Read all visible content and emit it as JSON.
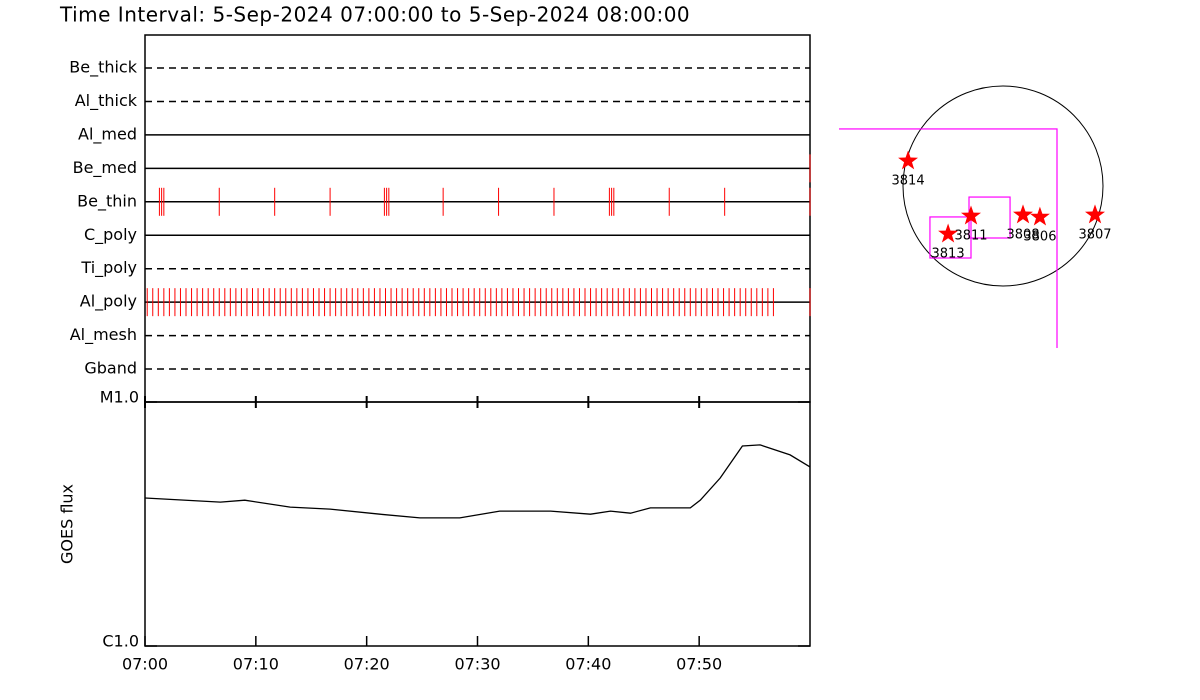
{
  "chart_data": [
    {
      "type": "timeline",
      "title": "Time Interval:  5-Sep-2024 07:00:00 to  5-Sep-2024 08:00:00",
      "xlim": [
        0,
        60
      ],
      "event_color": "#ff0000",
      "rows": [
        {
          "name": "Be_thick",
          "line_style": "dashed",
          "times": []
        },
        {
          "name": "Al_thick",
          "line_style": "dashed",
          "times": []
        },
        {
          "name": "Al_med",
          "line_style": "solid",
          "times": []
        },
        {
          "name": "Be_med",
          "line_style": "solid",
          "times": [
            60
          ]
        },
        {
          "name": "Be_thin",
          "line_style": "solid",
          "times": [
            1.3,
            1.5,
            1.7,
            6.7,
            11.7,
            16.7,
            21.6,
            21.8,
            22.0,
            26.9,
            31.9,
            36.9,
            41.9,
            42.1,
            42.3,
            47.3,
            52.3,
            60
          ]
        },
        {
          "name": "C_poly",
          "line_style": "solid",
          "times": []
        },
        {
          "name": "Ti_poly",
          "line_style": "dashed",
          "times": []
        },
        {
          "name": "Al_poly",
          "line_style": "solid",
          "times": [
            0.2,
            0.7,
            1.2,
            1.7,
            2.2,
            2.7,
            3.2,
            3.7,
            4.2,
            4.7,
            5.2,
            5.7,
            6.2,
            6.7,
            7.2,
            7.7,
            8.2,
            8.7,
            9.2,
            9.7,
            10.2,
            10.7,
            11.2,
            11.7,
            12.2,
            12.7,
            13.2,
            13.7,
            14.2,
            14.7,
            15.2,
            15.7,
            16.2,
            16.7,
            17.2,
            17.7,
            18.2,
            18.7,
            19.2,
            19.7,
            20.2,
            20.7,
            21.2,
            21.7,
            22.2,
            22.7,
            23.2,
            23.7,
            24.2,
            24.7,
            25.2,
            25.7,
            26.2,
            26.7,
            27.2,
            27.7,
            28.2,
            28.7,
            29.2,
            29.7,
            30.2,
            30.7,
            31.2,
            31.7,
            32.2,
            32.7,
            33.2,
            33.7,
            34.2,
            34.7,
            35.2,
            35.7,
            36.2,
            36.7,
            37.2,
            37.7,
            38.2,
            38.7,
            39.2,
            39.7,
            40.2,
            40.7,
            41.2,
            41.7,
            42.2,
            42.7,
            43.2,
            43.7,
            44.2,
            44.7,
            45.2,
            45.7,
            46.2,
            46.7,
            47.2,
            47.7,
            48.2,
            48.7,
            49.2,
            49.7,
            50.2,
            50.7,
            51.2,
            51.7,
            52.2,
            52.7,
            53.2,
            53.7,
            54.2,
            54.7,
            55.2,
            55.7,
            56.2,
            56.7,
            60
          ]
        },
        {
          "name": "Al_mesh",
          "line_style": "dashed",
          "times": []
        },
        {
          "name": "Gband",
          "line_style": "dashed",
          "times": []
        }
      ]
    },
    {
      "type": "line",
      "ylabel": "GOES flux",
      "log_scale": true,
      "color": "#000000",
      "xlim": [
        0,
        60
      ],
      "xticks": [
        {
          "value": 0,
          "label": "07:00"
        },
        {
          "value": 10,
          "label": "07:10"
        },
        {
          "value": 20,
          "label": "07:20"
        },
        {
          "value": 30,
          "label": "07:30"
        },
        {
          "value": 40,
          "label": "07:40"
        },
        {
          "value": 50,
          "label": "07:50"
        }
      ],
      "ylim": [
        1e-06,
        1e-05
      ],
      "yticks": [
        {
          "value": 1e-05,
          "label": "M1.0"
        },
        {
          "value": 1e-06,
          "label": "C1.0"
        }
      ],
      "x": [
        0,
        6.8,
        9.0,
        13.1,
        16.7,
        21.2,
        24.8,
        28.4,
        32.0,
        36.6,
        40.2,
        42.0,
        43.8,
        45.6,
        49.2,
        50.1,
        51.9,
        53.9,
        55.5,
        58.2,
        60
      ],
      "values": [
        4.04e-06,
        3.89e-06,
        3.96e-06,
        3.71e-06,
        3.64e-06,
        3.47e-06,
        3.35e-06,
        3.35e-06,
        3.57e-06,
        3.57e-06,
        3.47e-06,
        3.57e-06,
        3.5e-06,
        3.68e-06,
        3.68e-06,
        3.96e-06,
        4.88e-06,
        6.6e-06,
        6.67e-06,
        6.07e-06,
        5.42e-06
      ]
    },
    {
      "type": "map",
      "disk_radius": 950,
      "marker_color": "#ff0000",
      "box_color": "#ff00ff",
      "regions": [
        {
          "label": "3814",
          "x": -902,
          "y": 238
        },
        {
          "label": "3811",
          "x": -304,
          "y": -285
        },
        {
          "label": "3813",
          "x": -522,
          "y": -456
        },
        {
          "label": "3808",
          "x": 190,
          "y": -275
        },
        {
          "label": "3806",
          "x": 351,
          "y": -295
        },
        {
          "label": "3807",
          "x": 874,
          "y": -275
        }
      ],
      "fov_boxes": [
        [
          -694,
          -684,
          -304,
          -294
        ],
        [
          -323,
          -494,
          67,
          -105
        ],
        [
          -1568,
          -1549,
          513,
          542
        ]
      ]
    }
  ]
}
